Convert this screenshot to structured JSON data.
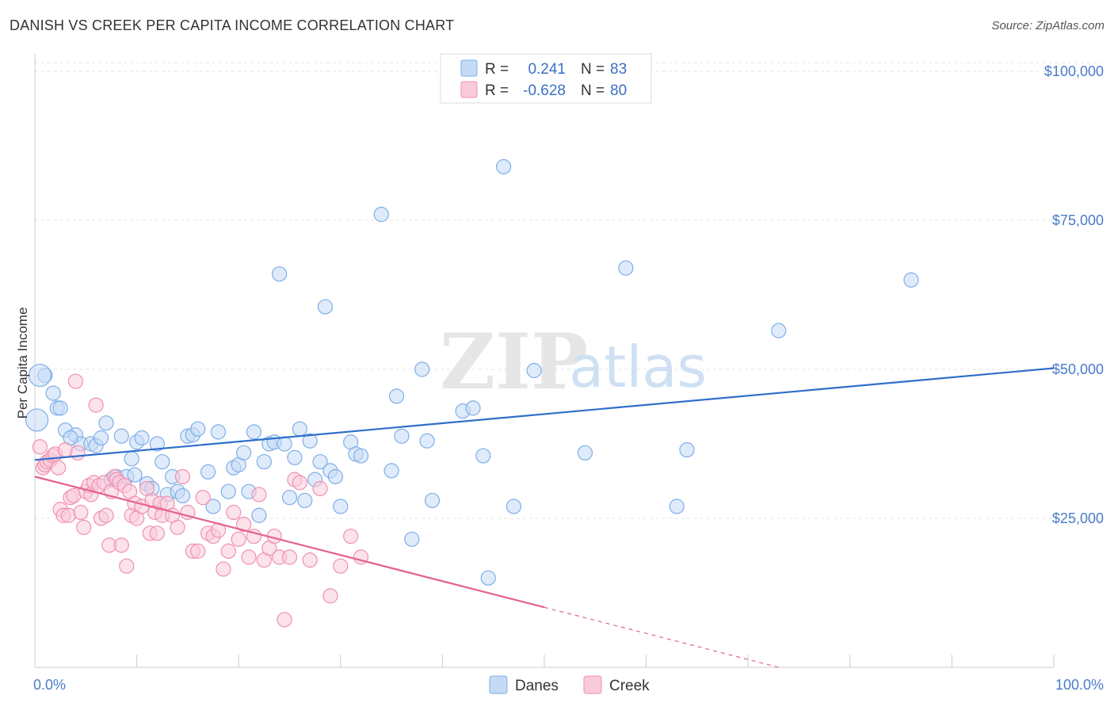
{
  "title": "DANISH VS CREEK PER CAPITA INCOME CORRELATION CHART",
  "source": "Source: ZipAtlas.com",
  "watermark": {
    "zip": "ZIP",
    "atlas": "atlas"
  },
  "chart_data": {
    "type": "scatter",
    "ylabel": "Per Capita Income",
    "xlim": [
      0,
      100
    ],
    "ylim": [
      0,
      102000
    ],
    "x_tick_labels": [
      "0.0%",
      "100.0%"
    ],
    "y_ticks": [
      25000,
      50000,
      75000,
      100000
    ],
    "y_tick_labels": [
      "$25,000",
      "$50,000",
      "$75,000",
      "$100,000"
    ],
    "legend": [
      {
        "r_label": "R =",
        "r_value": "0.241",
        "n_label": "N =",
        "n_value": "83"
      },
      {
        "r_label": "R =",
        "r_value": "-0.628",
        "n_label": "N =",
        "n_value": "80"
      }
    ],
    "series": [
      {
        "name": "Danes",
        "color": "#7eaee8",
        "fill": "#c5dbf5",
        "trend": {
          "x0": 0,
          "y0": 34800,
          "x1": 100,
          "y1": 50200,
          "solid_to": 100
        },
        "points": [
          [
            1,
            49000
          ],
          [
            1.8,
            46000
          ],
          [
            2.2,
            43500
          ],
          [
            2.5,
            43500
          ],
          [
            3,
            39800
          ],
          [
            4,
            39000
          ],
          [
            4.5,
            37500
          ],
          [
            5.5,
            37500
          ],
          [
            6,
            37200
          ],
          [
            6.5,
            38500
          ],
          [
            7,
            41000
          ],
          [
            7.5,
            31500
          ],
          [
            8,
            32000
          ],
          [
            8.5,
            38800
          ],
          [
            9,
            32000
          ],
          [
            9.5,
            35000
          ],
          [
            10,
            37800
          ],
          [
            10.5,
            38500
          ],
          [
            11,
            30800
          ],
          [
            11.5,
            30000
          ],
          [
            12,
            37500
          ],
          [
            12.5,
            34500
          ],
          [
            13,
            29000
          ],
          [
            13.5,
            32000
          ],
          [
            14,
            29500
          ],
          [
            14.5,
            28800
          ],
          [
            15,
            38800
          ],
          [
            15.5,
            39000
          ],
          [
            16,
            40000
          ],
          [
            17,
            32800
          ],
          [
            17.5,
            27000
          ],
          [
            18,
            39500
          ],
          [
            19,
            29500
          ],
          [
            19.5,
            33500
          ],
          [
            20,
            34000
          ],
          [
            20.5,
            36000
          ],
          [
            21,
            29500
          ],
          [
            21.5,
            39500
          ],
          [
            22,
            25500
          ],
          [
            22.5,
            34500
          ],
          [
            23,
            37500
          ],
          [
            23.5,
            37800
          ],
          [
            24,
            66000
          ],
          [
            24.5,
            37500
          ],
          [
            25,
            28500
          ],
          [
            25.5,
            35200
          ],
          [
            26,
            40000
          ],
          [
            26.5,
            28000
          ],
          [
            27,
            38000
          ],
          [
            27.5,
            31500
          ],
          [
            28,
            34500
          ],
          [
            28.5,
            60500
          ],
          [
            29,
            33000
          ],
          [
            29.5,
            32000
          ],
          [
            30,
            27000
          ],
          [
            31,
            37800
          ],
          [
            31.5,
            35800
          ],
          [
            32,
            35500
          ],
          [
            34,
            76000
          ],
          [
            35,
            33000
          ],
          [
            35.5,
            45500
          ],
          [
            36,
            38800
          ],
          [
            37,
            21500
          ],
          [
            38,
            50000
          ],
          [
            38.5,
            38000
          ],
          [
            39,
            28000
          ],
          [
            42,
            43000
          ],
          [
            43,
            43500
          ],
          [
            44,
            35500
          ],
          [
            44.5,
            15000
          ],
          [
            46,
            84000
          ],
          [
            47,
            27000
          ],
          [
            49,
            49800
          ],
          [
            54,
            36000
          ],
          [
            58,
            67000
          ],
          [
            63,
            27000
          ],
          [
            64,
            36500
          ],
          [
            73,
            56500
          ],
          [
            86,
            65000
          ],
          [
            0.2,
            41500
          ],
          [
            0.5,
            49000
          ],
          [
            3.5,
            38500
          ],
          [
            9.8,
            32300
          ]
        ]
      },
      {
        "name": "Creek",
        "color": "#f090b0",
        "fill": "#f9cadb",
        "trend": {
          "x0": 0,
          "y0": 32000,
          "x1": 73,
          "y1": 0,
          "solid_to": 50
        },
        "points": [
          [
            0.5,
            37000
          ],
          [
            0.8,
            33500
          ],
          [
            1,
            34000
          ],
          [
            1.2,
            34500
          ],
          [
            1.5,
            34800
          ],
          [
            1.8,
            35500
          ],
          [
            2,
            35800
          ],
          [
            2.3,
            33500
          ],
          [
            2.5,
            26500
          ],
          [
            2.8,
            25500
          ],
          [
            3,
            36500
          ],
          [
            3.3,
            25500
          ],
          [
            3.5,
            28500
          ],
          [
            3.8,
            28800
          ],
          [
            4,
            48000
          ],
          [
            4.2,
            36000
          ],
          [
            4.5,
            26000
          ],
          [
            4.8,
            23500
          ],
          [
            5,
            29500
          ],
          [
            5.3,
            30500
          ],
          [
            5.5,
            29000
          ],
          [
            5.8,
            31000
          ],
          [
            6,
            44000
          ],
          [
            6.3,
            30500
          ],
          [
            6.5,
            25000
          ],
          [
            6.8,
            31000
          ],
          [
            7,
            25500
          ],
          [
            7.3,
            20500
          ],
          [
            7.5,
            29500
          ],
          [
            7.8,
            32000
          ],
          [
            8,
            31500
          ],
          [
            8.3,
            31000
          ],
          [
            8.5,
            20500
          ],
          [
            8.8,
            30500
          ],
          [
            9,
            17000
          ],
          [
            9.3,
            29500
          ],
          [
            9.5,
            25500
          ],
          [
            9.8,
            27500
          ],
          [
            10,
            25000
          ],
          [
            10.5,
            27000
          ],
          [
            11,
            30000
          ],
          [
            11.3,
            22500
          ],
          [
            11.5,
            28000
          ],
          [
            11.8,
            26000
          ],
          [
            12,
            22500
          ],
          [
            12.3,
            27500
          ],
          [
            12.5,
            25500
          ],
          [
            13,
            27500
          ],
          [
            13.5,
            25500
          ],
          [
            14,
            23500
          ],
          [
            14.5,
            32000
          ],
          [
            15,
            26000
          ],
          [
            15.5,
            19500
          ],
          [
            16,
            19500
          ],
          [
            16.5,
            28500
          ],
          [
            17,
            22500
          ],
          [
            17.5,
            22000
          ],
          [
            18,
            23000
          ],
          [
            18.5,
            16500
          ],
          [
            19,
            19500
          ],
          [
            19.5,
            26000
          ],
          [
            20,
            21500
          ],
          [
            20.5,
            24000
          ],
          [
            21,
            18500
          ],
          [
            21.5,
            22000
          ],
          [
            22,
            29000
          ],
          [
            22.5,
            18000
          ],
          [
            23,
            20000
          ],
          [
            23.5,
            22000
          ],
          [
            24,
            18500
          ],
          [
            24.5,
            8000
          ],
          [
            25,
            18500
          ],
          [
            25.5,
            31500
          ],
          [
            26,
            31000
          ],
          [
            27,
            18000
          ],
          [
            28,
            30000
          ],
          [
            29,
            12000
          ],
          [
            30,
            17000
          ],
          [
            31,
            22000
          ],
          [
            32,
            18500
          ]
        ]
      }
    ],
    "grid": true,
    "legend_placement": "top-center"
  }
}
